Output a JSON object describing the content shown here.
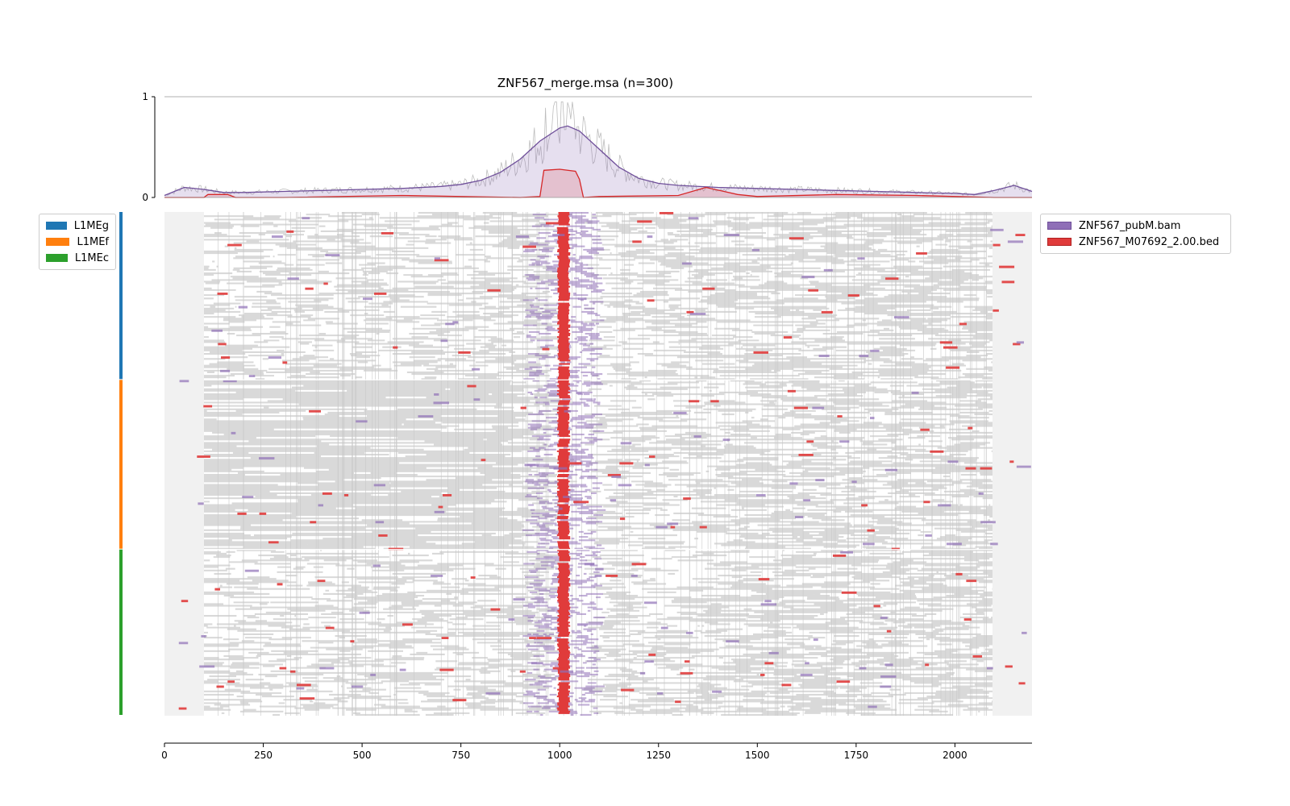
{
  "chart_data": {
    "type": "heatmap",
    "title": "ZNF567_merge.msa (n=300)",
    "profile": {
      "ylim": [
        0,
        1
      ],
      "yticks": [
        "0",
        "1"
      ],
      "series": [
        {
          "name": "ZNF567_pubM.bam",
          "color": "#8f6fb7",
          "x": [
            0,
            50,
            100,
            150,
            200,
            300,
            400,
            500,
            600,
            700,
            750,
            800,
            850,
            900,
            950,
            1000,
            1020,
            1050,
            1100,
            1150,
            1200,
            1250,
            1300,
            1400,
            1500,
            1600,
            1700,
            1800,
            1900,
            2000,
            2050,
            2100,
            2150,
            2195
          ],
          "values": [
            0.02,
            0.1,
            0.08,
            0.05,
            0.05,
            0.06,
            0.07,
            0.08,
            0.09,
            0.11,
            0.13,
            0.17,
            0.25,
            0.38,
            0.56,
            0.69,
            0.71,
            0.66,
            0.48,
            0.3,
            0.19,
            0.14,
            0.12,
            0.1,
            0.09,
            0.08,
            0.07,
            0.06,
            0.05,
            0.04,
            0.03,
            0.07,
            0.12,
            0.06
          ]
        },
        {
          "name": "ZNF567_M07692_2.00.bed",
          "color": "#e03b3b",
          "x": [
            0,
            100,
            110,
            160,
            180,
            300,
            600,
            900,
            950,
            960,
            1000,
            1040,
            1050,
            1060,
            1100,
            1300,
            1370,
            1450,
            1500,
            1700,
            1900,
            2100,
            2195
          ],
          "values": [
            0,
            0,
            0.03,
            0.03,
            0.0,
            0.0,
            0.02,
            0.0,
            0.01,
            0.27,
            0.28,
            0.26,
            0.18,
            0.0,
            0.01,
            0.02,
            0.1,
            0.03,
            0.01,
            0.03,
            0.02,
            0.0,
            0.0
          ]
        }
      ]
    },
    "heatmap": {
      "xlim": [
        0,
        2195
      ],
      "rows": 300,
      "groups": [
        {
          "name": "L1MEg",
          "color": "#1f77b4",
          "rows": 100
        },
        {
          "name": "L1MEf",
          "color": "#ff7f0e",
          "rows": 101
        },
        {
          "name": "L1MEc",
          "color": "#2ca02c",
          "rows": 99
        }
      ],
      "colors": {
        "flank": "#f1f1f1",
        "gap": "#d9d9d9",
        "signal": "#8f6fb7",
        "motif": "#e03b3b"
      },
      "motif_peak_center": 1010
    },
    "xaxis": {
      "ticks": [
        0,
        250,
        500,
        750,
        1000,
        1250,
        1500,
        1750,
        2000
      ],
      "tick_labels": [
        "0",
        "250",
        "500",
        "750",
        "1000",
        "1250",
        "1500",
        "1750",
        "2000"
      ]
    },
    "group_legend": [
      {
        "label": "L1MEg",
        "color": "#1f77b4"
      },
      {
        "label": "L1MEf",
        "color": "#ff7f0e"
      },
      {
        "label": "L1MEc",
        "color": "#2ca02c"
      }
    ],
    "track_legend": [
      {
        "label": "ZNF567_pubM.bam",
        "color": "#8f6fb7"
      },
      {
        "label": "ZNF567_M07692_2.00.bed",
        "color": "#e03b3b"
      }
    ]
  }
}
